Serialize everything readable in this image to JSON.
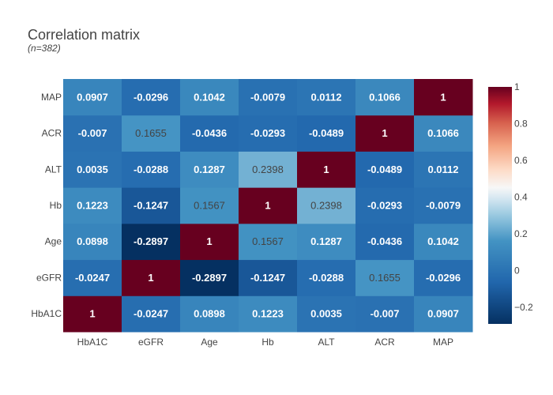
{
  "chart_data": {
    "type": "heatmap",
    "title": "Correlation matrix",
    "subtitle": "(n=382)",
    "x_categories": [
      "HbA1C",
      "eGFR",
      "Age",
      "Hb",
      "ALT",
      "ACR",
      "MAP"
    ],
    "y_categories": [
      "HbA1C",
      "eGFR",
      "Age",
      "Hb",
      "ALT",
      "ACR",
      "MAP"
    ],
    "z": [
      [
        1,
        -0.0247,
        0.0898,
        0.1223,
        0.0035,
        -0.007,
        0.0907
      ],
      [
        -0.0247,
        1,
        -0.2897,
        -0.1247,
        -0.0288,
        0.1655,
        -0.0296
      ],
      [
        0.0898,
        -0.2897,
        1,
        0.1567,
        0.1287,
        -0.0436,
        0.1042
      ],
      [
        0.1223,
        -0.1247,
        0.1567,
        1,
        0.2398,
        -0.0293,
        -0.0079
      ],
      [
        0.0035,
        -0.0288,
        0.1287,
        0.2398,
        1,
        -0.0489,
        0.0112
      ],
      [
        -0.007,
        0.1655,
        -0.0436,
        -0.0293,
        -0.0489,
        1,
        0.1066
      ],
      [
        0.0907,
        -0.0296,
        0.1042,
        -0.0079,
        0.0112,
        0.1066,
        1
      ]
    ],
    "zlim": [
      -0.2897,
      1
    ],
    "colorscale": "RdBu (reversed)",
    "colorbar": {
      "ticks": [
        -0.2,
        0,
        0.2,
        0.4,
        0.6,
        0.8,
        1
      ],
      "tick_labels": [
        "−0.2",
        "0",
        "0.2",
        "0.4",
        "0.6",
        "0.8",
        "1"
      ]
    },
    "legend": "colorbar-right"
  }
}
